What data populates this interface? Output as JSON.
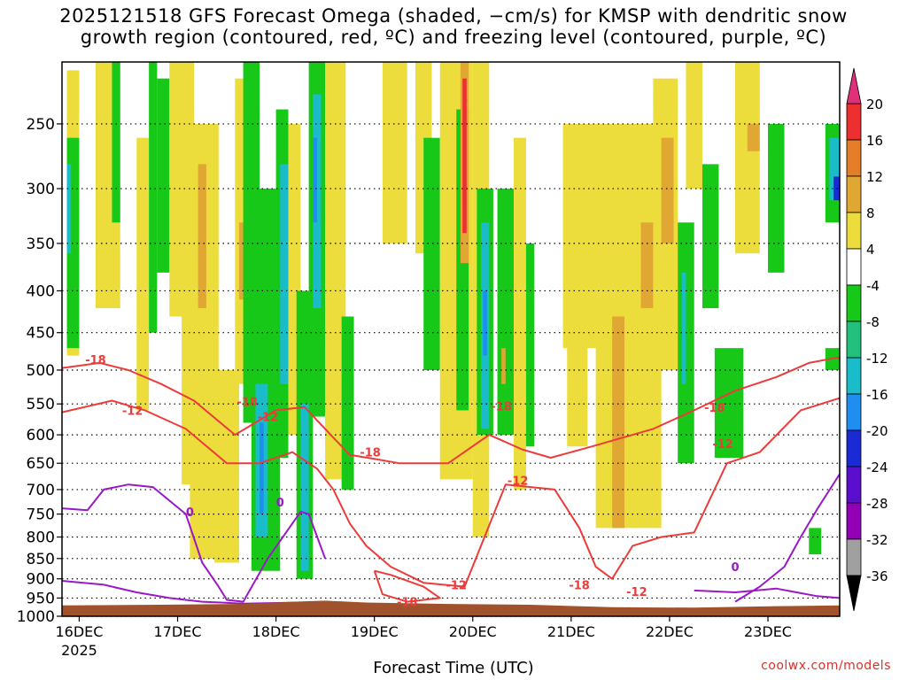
{
  "chart_data": {
    "type": "heatmap",
    "title_line1": "2025121518 GFS Forecast Omega (shaded, −cm/s) for KMSP with dendritic snow",
    "title_line2": "growth region (contoured, red, ºC) and freezing level (contoured, purple, ºC)",
    "xlabel": "Forecast Time (UTC)",
    "ylabel": "",
    "credit": "coolwx.com/models",
    "x_unit": "hours since 16DEC 00Z",
    "xlim": [
      -4.2,
      185.5
    ],
    "ylim": [
      1000,
      200
    ],
    "x_ticks": [
      {
        "t": 0,
        "label": "16DEC",
        "sub": "2025"
      },
      {
        "t": 24,
        "label": "17DEC",
        "sub": ""
      },
      {
        "t": 48,
        "label": "18DEC",
        "sub": ""
      },
      {
        "t": 72,
        "label": "19DEC",
        "sub": ""
      },
      {
        "t": 96,
        "label": "20DEC",
        "sub": ""
      },
      {
        "t": 120,
        "label": "21DEC",
        "sub": ""
      },
      {
        "t": 144,
        "label": "22DEC",
        "sub": ""
      },
      {
        "t": 168,
        "label": "23DEC",
        "sub": ""
      }
    ],
    "y_ticks": [
      {
        "p": 250,
        "label": "250"
      },
      {
        "p": 300,
        "label": "300"
      },
      {
        "p": 350,
        "label": "350"
      },
      {
        "p": 400,
        "label": "400"
      },
      {
        "p": 450,
        "label": "450"
      },
      {
        "p": 500,
        "label": "500"
      },
      {
        "p": 550,
        "label": "550"
      },
      {
        "p": 600,
        "label": "600"
      },
      {
        "p": 650,
        "label": "650"
      },
      {
        "p": 700,
        "label": "700"
      },
      {
        "p": 750,
        "label": "750"
      },
      {
        "p": 800,
        "label": "800"
      },
      {
        "p": 850,
        "label": "850"
      },
      {
        "p": 900,
        "label": "900"
      },
      {
        "p": 950,
        "label": "950"
      },
      {
        "p": 1000,
        "label": "1000"
      }
    ],
    "colorbar": {
      "bins": [
        {
          "lo": -36,
          "hi": -32,
          "color": "#a0a0a0"
        },
        {
          "lo": -32,
          "hi": -28,
          "color": "#9100b4"
        },
        {
          "lo": -28,
          "hi": -24,
          "color": "#5a0fcf"
        },
        {
          "lo": -24,
          "hi": -20,
          "color": "#1a2bd6"
        },
        {
          "lo": -20,
          "hi": -16,
          "color": "#1f8ef0"
        },
        {
          "lo": -16,
          "hi": -12,
          "color": "#19bcc8"
        },
        {
          "lo": -12,
          "hi": -8,
          "color": "#22c07c"
        },
        {
          "lo": -8,
          "hi": -4,
          "color": "#18c818"
        },
        {
          "lo": -4,
          "hi": 4,
          "color": "#ffffff"
        },
        {
          "lo": 4,
          "hi": 8,
          "color": "#ecdc3c"
        },
        {
          "lo": 8,
          "hi": 12,
          "color": "#e0a832"
        },
        {
          "lo": 12,
          "hi": 16,
          "color": "#e47e28"
        },
        {
          "lo": 16,
          "hi": 20,
          "color": "#ec3030"
        }
      ],
      "labels": [
        "20",
        "16",
        "12",
        "8",
        "4",
        "-4",
        "-8",
        "-12",
        "-16",
        "-20",
        "-24",
        "-28",
        "-32",
        "-36"
      ],
      "over_color": "#e0307a",
      "under_color": "#000000"
    },
    "terrain_color": "#a0522d",
    "terrain": [
      [
        -4.2,
        970
      ],
      [
        20,
        968
      ],
      [
        40,
        966
      ],
      [
        52,
        960
      ],
      [
        60,
        957
      ],
      [
        70,
        962
      ],
      [
        90,
        966
      ],
      [
        110,
        968
      ],
      [
        130,
        975
      ],
      [
        150,
        976
      ],
      [
        170,
        972
      ],
      [
        185.5,
        970
      ]
    ],
    "omega_regions": [
      {
        "v": 6,
        "t0": -3,
        "t1": 0,
        "p0": 215,
        "p1": 480
      },
      {
        "v": -6,
        "t0": -3,
        "t1": 0,
        "p0": 260,
        "p1": 470
      },
      {
        "v": -14,
        "t0": -3,
        "t1": -2,
        "p0": 280,
        "p1": 360
      },
      {
        "v": 6,
        "t0": 4,
        "t1": 10,
        "p0": 200,
        "p1": 420
      },
      {
        "v": -6,
        "t0": 8,
        "t1": 10,
        "p0": 200,
        "p1": 330
      },
      {
        "v": 6,
        "t0": 14,
        "t1": 17,
        "p0": 260,
        "p1": 560
      },
      {
        "v": -6,
        "t0": 17,
        "t1": 19,
        "p0": 200,
        "p1": 450
      },
      {
        "v": -6,
        "t0": 19,
        "t1": 22,
        "p0": 220,
        "p1": 380
      },
      {
        "v": 6,
        "t0": 22,
        "t1": 28,
        "p0": 200,
        "p1": 430
      },
      {
        "v": 6,
        "t0": 25,
        "t1": 30,
        "p0": 400,
        "p1": 690
      },
      {
        "v": 6,
        "t0": 27,
        "t1": 34,
        "p0": 250,
        "p1": 850
      },
      {
        "v": 10,
        "t0": 29,
        "t1": 31,
        "p0": 280,
        "p1": 420
      },
      {
        "v": 6,
        "t0": 33,
        "t1": 39,
        "p0": 500,
        "p1": 860
      },
      {
        "v": 6,
        "t0": 38,
        "t1": 43,
        "p0": 220,
        "p1": 520
      },
      {
        "v": 10,
        "t0": 39,
        "t1": 41,
        "p0": 330,
        "p1": 410
      },
      {
        "v": -6,
        "t0": 40,
        "t1": 44,
        "p0": 200,
        "p1": 580
      },
      {
        "v": -6,
        "t0": 42,
        "t1": 49,
        "p0": 300,
        "p1": 880
      },
      {
        "v": -14,
        "t0": 43,
        "t1": 46,
        "p0": 520,
        "p1": 800
      },
      {
        "v": -18,
        "t0": 44,
        "t1": 45,
        "p0": 580,
        "p1": 750
      },
      {
        "v": -6,
        "t0": 48,
        "t1": 51,
        "p0": 240,
        "p1": 640
      },
      {
        "v": -14,
        "t0": 49,
        "t1": 51,
        "p0": 280,
        "p1": 520
      },
      {
        "v": 6,
        "t0": 51,
        "t1": 54,
        "p0": 250,
        "p1": 600
      },
      {
        "v": -6,
        "t0": 53,
        "t1": 57,
        "p0": 400,
        "p1": 900
      },
      {
        "v": -14,
        "t0": 54,
        "t1": 56,
        "p0": 550,
        "p1": 880
      },
      {
        "v": -6,
        "t0": 56,
        "t1": 60,
        "p0": 200,
        "p1": 570
      },
      {
        "v": -14,
        "t0": 57,
        "t1": 59,
        "p0": 230,
        "p1": 420
      },
      {
        "v": -18,
        "t0": 57,
        "t1": 58,
        "p0": 260,
        "p1": 330
      },
      {
        "v": 6,
        "t0": 60,
        "t1": 65,
        "p0": 200,
        "p1": 620
      },
      {
        "v": 6,
        "t0": 60,
        "t1": 64,
        "p0": 460,
        "p1": 680
      },
      {
        "v": -6,
        "t0": 64,
        "t1": 67,
        "p0": 430,
        "p1": 700
      },
      {
        "v": 6,
        "t0": 74,
        "t1": 80,
        "p0": 200,
        "p1": 350
      },
      {
        "v": 6,
        "t0": 82,
        "t1": 86,
        "p0": 200,
        "p1": 360
      },
      {
        "v": -6,
        "t0": 84,
        "t1": 88,
        "p0": 260,
        "p1": 500
      },
      {
        "v": 6,
        "t0": 88,
        "t1": 96,
        "p0": 200,
        "p1": 680
      },
      {
        "v": -6,
        "t0": 92,
        "t1": 95,
        "p0": 240,
        "p1": 560
      },
      {
        "v": 10,
        "t0": 93,
        "t1": 95,
        "p0": 210,
        "p1": 370
      },
      {
        "v": 16,
        "t0": 93.5,
        "t1": 94.5,
        "p0": 220,
        "p1": 340
      },
      {
        "v": 6,
        "t0": 96,
        "t1": 100,
        "p0": 200,
        "p1": 800
      },
      {
        "v": -6,
        "t0": 97,
        "t1": 101,
        "p0": 300,
        "p1": 600
      },
      {
        "v": -14,
        "t0": 98,
        "t1": 100,
        "p0": 330,
        "p1": 590
      },
      {
        "v": -18,
        "t0": 98.5,
        "t1": 99.5,
        "p0": 400,
        "p1": 480
      },
      {
        "v": -6,
        "t0": 102,
        "t1": 106,
        "p0": 300,
        "p1": 600
      },
      {
        "v": 10,
        "t0": 103,
        "t1": 104,
        "p0": 470,
        "p1": 520
      },
      {
        "v": 6,
        "t0": 106,
        "t1": 109,
        "p0": 260,
        "p1": 700
      },
      {
        "v": -6,
        "t0": 109,
        "t1": 111,
        "p0": 350,
        "p1": 620
      },
      {
        "v": 6,
        "t0": 118,
        "t1": 128,
        "p0": 250,
        "p1": 470
      },
      {
        "v": 6,
        "t0": 119,
        "t1": 124,
        "p0": 450,
        "p1": 620
      },
      {
        "v": 6,
        "t0": 126,
        "t1": 142,
        "p0": 250,
        "p1": 780
      },
      {
        "v": 10,
        "t0": 130,
        "t1": 133,
        "p0": 430,
        "p1": 780
      },
      {
        "v": 10,
        "t0": 137,
        "t1": 140,
        "p0": 330,
        "p1": 420
      },
      {
        "v": 6,
        "t0": 140,
        "t1": 146,
        "p0": 220,
        "p1": 500
      },
      {
        "v": 10,
        "t0": 142,
        "t1": 145,
        "p0": 260,
        "p1": 350
      },
      {
        "v": -6,
        "t0": 146,
        "t1": 150,
        "p0": 330,
        "p1": 650
      },
      {
        "v": -14,
        "t0": 147,
        "t1": 148,
        "p0": 380,
        "p1": 520
      },
      {
        "v": 6,
        "t0": 148,
        "t1": 152,
        "p0": 200,
        "p1": 300
      },
      {
        "v": -6,
        "t0": 152,
        "t1": 156,
        "p0": 280,
        "p1": 420
      },
      {
        "v": -6,
        "t0": 155,
        "t1": 162,
        "p0": 470,
        "p1": 640
      },
      {
        "v": 6,
        "t0": 160,
        "t1": 166,
        "p0": 200,
        "p1": 360
      },
      {
        "v": 10,
        "t0": 163,
        "t1": 166,
        "p0": 250,
        "p1": 270
      },
      {
        "v": -6,
        "t0": 168,
        "t1": 172,
        "p0": 250,
        "p1": 380
      },
      {
        "v": -6,
        "t0": 182,
        "t1": 185.5,
        "p0": 250,
        "p1": 330
      },
      {
        "v": -14,
        "t0": 183,
        "t1": 185.5,
        "p0": 260,
        "p1": 310
      },
      {
        "v": -22,
        "t0": 184,
        "t1": 185.5,
        "p0": 290,
        "p1": 310
      },
      {
        "v": -6,
        "t0": 182,
        "t1": 185.5,
        "p0": 470,
        "p1": 500
      },
      {
        "v": -6,
        "t0": 178,
        "t1": 181,
        "p0": 780,
        "p1": 840
      }
    ],
    "dgz_contours": [
      {
        "level": -18,
        "points": [
          [
            -4.2,
            497
          ],
          [
            5,
            490
          ],
          [
            12,
            500
          ],
          [
            20,
            520
          ],
          [
            28,
            545
          ],
          [
            38,
            600
          ],
          [
            48,
            560
          ],
          [
            55,
            555
          ],
          [
            60,
            590
          ],
          [
            66,
            635
          ],
          [
            72,
            642
          ],
          [
            78,
            650
          ],
          [
            90,
            650
          ],
          [
            100,
            600
          ],
          [
            108,
            625
          ],
          [
            115,
            640
          ],
          [
            125,
            620
          ],
          [
            140,
            590
          ],
          [
            150,
            560
          ],
          [
            160,
            530
          ],
          [
            170,
            510
          ],
          [
            178,
            490
          ],
          [
            185.5,
            482
          ]
        ]
      },
      {
        "level": -12,
        "points": [
          [
            -4.2,
            563
          ],
          [
            8,
            545
          ],
          [
            16,
            560
          ],
          [
            26,
            590
          ],
          [
            36,
            650
          ],
          [
            44,
            650
          ],
          [
            52,
            630
          ],
          [
            58,
            660
          ],
          [
            62,
            700
          ],
          [
            66,
            770
          ],
          [
            70,
            820
          ],
          [
            76,
            870
          ],
          [
            84,
            910
          ],
          [
            94,
            920
          ],
          [
            104,
            690
          ],
          [
            116,
            700
          ],
          [
            122,
            780
          ],
          [
            126,
            870
          ],
          [
            130,
            900
          ],
          [
            135,
            820
          ],
          [
            142,
            800
          ],
          [
            150,
            790
          ],
          [
            158,
            650
          ],
          [
            166,
            630
          ],
          [
            176,
            560
          ],
          [
            185.5,
            541
          ]
        ]
      },
      {
        "level": -18,
        "points": [
          [
            72,
            880
          ],
          [
            76,
            890
          ],
          [
            84,
            920
          ],
          [
            88,
            950
          ],
          [
            80,
            960
          ],
          [
            74,
            940
          ],
          [
            72,
            880
          ]
        ]
      }
    ],
    "freezing_contours": [
      {
        "level": 0,
        "points": [
          [
            -4.2,
            738
          ],
          [
            2,
            742
          ],
          [
            6,
            700
          ],
          [
            12,
            690
          ],
          [
            18,
            695
          ],
          [
            26,
            750
          ],
          [
            30,
            860
          ],
          [
            34,
            920
          ],
          [
            36,
            955
          ],
          [
            40,
            960
          ],
          [
            46,
            850
          ],
          [
            54,
            745
          ],
          [
            56,
            750
          ],
          [
            60,
            850
          ]
        ]
      },
      {
        "level": 0,
        "points": [
          [
            -4.2,
            905
          ],
          [
            6,
            915
          ],
          [
            14,
            935
          ],
          [
            22,
            950
          ],
          [
            30,
            960
          ],
          [
            40,
            965
          ],
          [
            54,
            962
          ]
        ]
      },
      {
        "level": 0,
        "points": [
          [
            160,
            960
          ],
          [
            166,
            920
          ],
          [
            172,
            870
          ],
          [
            176,
            800
          ],
          [
            180,
            740
          ],
          [
            185.5,
            670
          ]
        ]
      },
      {
        "level": 0,
        "points": [
          [
            150,
            930
          ],
          [
            160,
            935
          ],
          [
            170,
            925
          ],
          [
            180,
            945
          ],
          [
            185.5,
            950
          ]
        ]
      }
    ],
    "contour_labels": [
      {
        "t": 4,
        "p": 485,
        "text": "-18",
        "color": "#ec3b3b"
      },
      {
        "t": 13,
        "p": 560,
        "text": "-12",
        "color": "#ec3b3b"
      },
      {
        "t": 41,
        "p": 546,
        "text": "-18",
        "color": "#ec3b3b"
      },
      {
        "t": 46,
        "p": 570,
        "text": "-12",
        "color": "#ec3b3b"
      },
      {
        "t": 71,
        "p": 630,
        "text": "-18",
        "color": "#ec3b3b"
      },
      {
        "t": 103,
        "p": 553,
        "text": "-18",
        "color": "#ec3b3b"
      },
      {
        "t": 107,
        "p": 682,
        "text": "-12",
        "color": "#ec3b3b"
      },
      {
        "t": 92,
        "p": 915,
        "text": "-12",
        "color": "#ec3b3b"
      },
      {
        "t": 80,
        "p": 960,
        "text": "-18",
        "color": "#ec3b3b"
      },
      {
        "t": 122,
        "p": 915,
        "text": "-18",
        "color": "#ec3b3b"
      },
      {
        "t": 136,
        "p": 932,
        "text": "-12",
        "color": "#ec3b3b"
      },
      {
        "t": 155,
        "p": 555,
        "text": "-18",
        "color": "#ec3b3b"
      },
      {
        "t": 157,
        "p": 615,
        "text": "-12",
        "color": "#ec3b3b"
      },
      {
        "t": 27,
        "p": 745,
        "text": "0",
        "color": "#9b18c8"
      },
      {
        "t": 49,
        "p": 725,
        "text": "0",
        "color": "#9b18c8"
      },
      {
        "t": 160,
        "p": 870,
        "text": "0",
        "color": "#9b18c8"
      }
    ]
  }
}
